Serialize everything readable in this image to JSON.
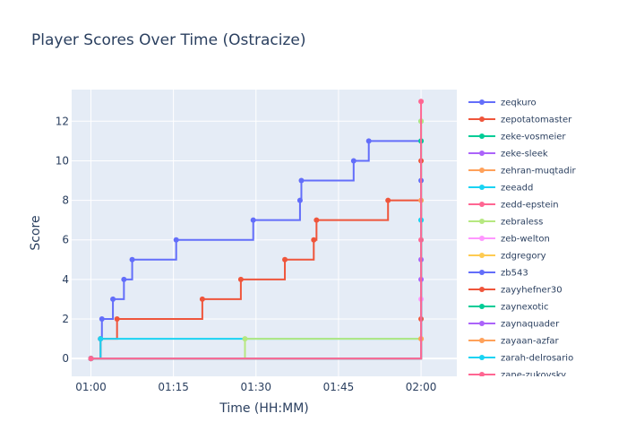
{
  "chart_data": {
    "type": "line",
    "line_shape": "step",
    "title": "Player Scores Over Time (Ostracize)",
    "xlabel": "Time (HH:MM)",
    "ylabel": "Score",
    "x_ticks": [
      "01:00",
      "01:15",
      "01:30",
      "01:45",
      "02:00"
    ],
    "y_ticks": [
      0,
      2,
      4,
      6,
      8,
      10,
      12
    ],
    "xlim": [
      "00:56:30",
      "02:06:30"
    ],
    "ylim": [
      -0.9,
      13.6
    ],
    "grid": true,
    "legend_position": "right",
    "plot_background": "#e5ecf6",
    "series": [
      {
        "name": "zeqkuro",
        "color": "#636efa",
        "points": [
          [
            "01:00:00",
            0
          ],
          [
            "01:01:45",
            1
          ],
          [
            "01:02:00",
            2
          ],
          [
            "01:04:00",
            3
          ],
          [
            "01:06:00",
            4
          ],
          [
            "01:07:30",
            5
          ],
          [
            "01:15:30",
            6
          ],
          [
            "01:29:30",
            7
          ],
          [
            "01:38:00",
            8
          ],
          [
            "01:38:15",
            9
          ],
          [
            "01:47:45",
            10
          ],
          [
            "01:50:30",
            11
          ],
          [
            "02:00:00",
            11
          ]
        ]
      },
      {
        "name": "zepotatomaster",
        "color": "#ef553b",
        "points": [
          [
            "01:00:00",
            0
          ],
          [
            "01:01:45",
            1
          ],
          [
            "01:04:45",
            2
          ],
          [
            "01:20:15",
            3
          ],
          [
            "01:27:15",
            4
          ],
          [
            "01:35:15",
            5
          ],
          [
            "01:40:30",
            6
          ],
          [
            "01:41:00",
            7
          ],
          [
            "01:54:00",
            8
          ],
          [
            "02:00:00",
            2
          ]
        ]
      },
      {
        "name": "zeke-vosmeier",
        "color": "#00cc96",
        "points": [
          [
            "01:00:00",
            0
          ],
          [
            "02:00:00",
            12
          ]
        ]
      },
      {
        "name": "zeke-sleek",
        "color": "#ab63fa",
        "points": [
          [
            "01:00:00",
            0
          ],
          [
            "02:00:00",
            5
          ]
        ]
      },
      {
        "name": "zehran-muqtadir",
        "color": "#ffa15a",
        "points": [
          [
            "01:00:00",
            0
          ],
          [
            "02:00:00",
            8
          ]
        ]
      },
      {
        "name": "zeeadd",
        "color": "#19d3f3",
        "points": [
          [
            "01:00:00",
            0
          ],
          [
            "01:01:45",
            1
          ],
          [
            "02:00:00",
            7
          ]
        ]
      },
      {
        "name": "zedd-epstein",
        "color": "#ff6692",
        "points": [
          [
            "01:00:00",
            0
          ],
          [
            "02:00:00",
            6
          ]
        ]
      },
      {
        "name": "zebraless",
        "color": "#b6e880",
        "points": [
          [
            "01:00:00",
            0
          ],
          [
            "01:28:00",
            1
          ],
          [
            "02:00:00",
            12
          ]
        ]
      },
      {
        "name": "zeb-welton",
        "color": "#ff97ff",
        "points": [
          [
            "01:00:00",
            0
          ],
          [
            "02:00:00",
            3
          ]
        ]
      },
      {
        "name": "zdgregory",
        "color": "#fecb52",
        "points": [
          [
            "01:00:00",
            0
          ],
          [
            "02:00:00",
            1
          ]
        ]
      },
      {
        "name": "zb543",
        "color": "#636efa",
        "points": [
          [
            "01:00:00",
            0
          ],
          [
            "02:00:00",
            9
          ]
        ]
      },
      {
        "name": "zayyhefner30",
        "color": "#ef553b",
        "points": [
          [
            "01:00:00",
            0
          ],
          [
            "02:00:00",
            10
          ]
        ]
      },
      {
        "name": "zaynexotic",
        "color": "#00cc96",
        "points": [
          [
            "01:00:00",
            0
          ],
          [
            "02:00:00",
            11
          ]
        ]
      },
      {
        "name": "zaynaquader",
        "color": "#ab63fa",
        "points": [
          [
            "01:00:00",
            0
          ],
          [
            "02:00:00",
            4
          ]
        ]
      },
      {
        "name": "zayaan-azfar",
        "color": "#ffa15a",
        "points": [
          [
            "01:00:00",
            0
          ],
          [
            "02:00:00",
            1
          ]
        ]
      },
      {
        "name": "zarah-delrosario",
        "color": "#19d3f3",
        "points": [
          [
            "01:00:00",
            0
          ],
          [
            "02:00:00",
            7
          ]
        ]
      },
      {
        "name": "zane-zukovsky",
        "color": "#ff6692",
        "points": [
          [
            "01:00:00",
            0
          ],
          [
            "02:00:00",
            13
          ]
        ]
      }
    ]
  }
}
